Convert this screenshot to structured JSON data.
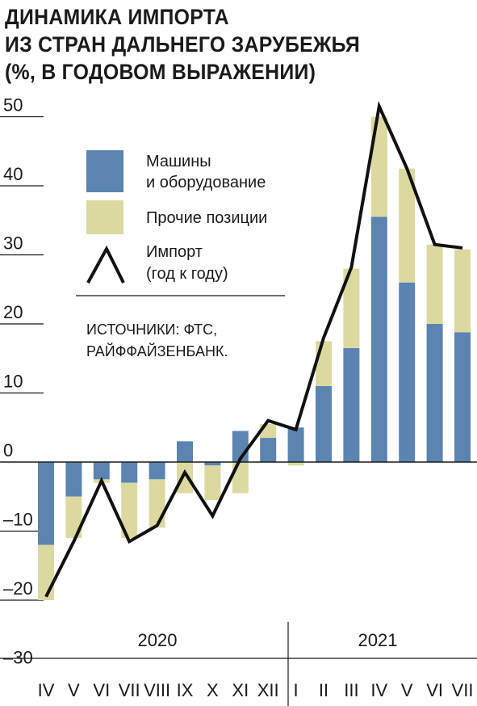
{
  "title_lines": [
    "ДИНАМИКА ИМПОРТА",
    "ИЗ СТРАН ДАЛЬНЕГО ЗАРУБЕЖЬЯ",
    "(%, В ГОДОВОМ ВЫРАЖЕНИИ)"
  ],
  "legend": {
    "machines_line1": "Машины",
    "machines_line2": "и оборудование",
    "other": "Прочие позиции",
    "import_line1": "Импорт",
    "import_line2": "(год к году)"
  },
  "source_lines": [
    "ИСТОЧНИКИ: ФТС,",
    "РАЙФФАЙЗЕНБАНК."
  ],
  "colors": {
    "machines": "#5b84b1",
    "other": "#dcd9a0",
    "line": "#111111",
    "grid": "#1a1a1a"
  },
  "chart_data": {
    "type": "bar",
    "stacked": true,
    "years": [
      {
        "label": "2020",
        "months": [
          "IV",
          "V",
          "VI",
          "VII",
          "VIII",
          "IX",
          "X",
          "XI",
          "XII"
        ]
      },
      {
        "label": "2021",
        "months": [
          "I",
          "II",
          "III",
          "IV",
          "V",
          "VI",
          "VII"
        ]
      }
    ],
    "categories": [
      "IV",
      "V",
      "VI",
      "VII",
      "VIII",
      "IX",
      "X",
      "XI",
      "XII",
      "I",
      "II",
      "III",
      "IV",
      "V",
      "VI",
      "VII"
    ],
    "series": [
      {
        "name": "Машины и оборудование",
        "type": "bar",
        "values": [
          -12,
          -5,
          -2.5,
          -3,
          -2.5,
          3,
          -0.5,
          4.5,
          3.5,
          5,
          11,
          16.5,
          35.5,
          26,
          20,
          18.8
        ]
      },
      {
        "name": "Прочие позиции",
        "type": "bar",
        "values": [
          -8,
          -6,
          -0.5,
          -8,
          -7,
          -4.5,
          -5,
          -4.5,
          2,
          -0.5,
          6.5,
          11.5,
          14.5,
          16.5,
          11.5,
          12
        ]
      },
      {
        "name": "Импорт (год к году)",
        "type": "line",
        "values": [
          -19.5,
          -11.5,
          -2.7,
          -11.5,
          -9.2,
          -1.5,
          -7.8,
          0.5,
          6,
          4.7,
          18,
          28.2,
          51.5,
          42.5,
          31.5,
          31
        ]
      }
    ],
    "y_ticks": [
      50,
      40,
      30,
      20,
      10,
      0,
      -10,
      -20,
      -30
    ],
    "y_tick_labels": [
      "50",
      "40",
      "30",
      "20",
      "10",
      "0",
      "–10",
      "–20",
      "–30"
    ],
    "ylim": [
      -30,
      50
    ],
    "legend_position": "top-left"
  }
}
